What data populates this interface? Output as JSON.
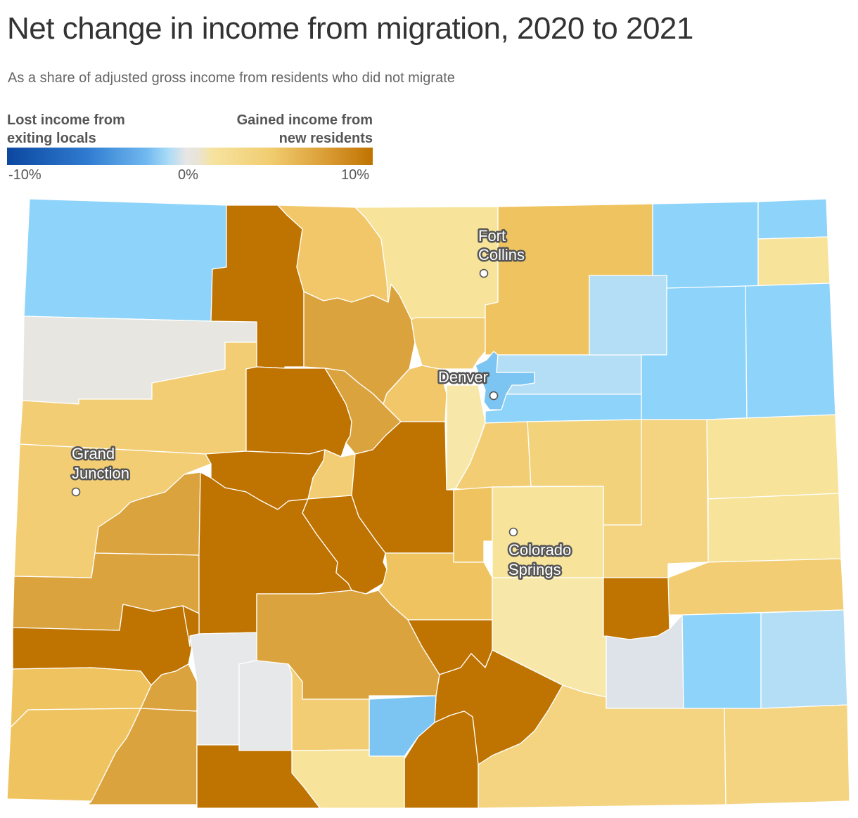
{
  "title": "Net change in income from migration, 2020 to 2021",
  "subtitle": "As a share of adjusted gross income from residents who did not migrate",
  "legend": {
    "left_label": [
      "Lost income from",
      "exiting locals"
    ],
    "right_label": [
      "Gained income from",
      "new residents"
    ],
    "ticks": [
      "-10%",
      "0%",
      "10%"
    ]
  },
  "colors": {
    "dark_blue": "#0c47a0",
    "blue": "#7cc4f2",
    "light_blue": "#8dd3fa",
    "pale_blue": "#b4def5",
    "gray": "#e8e8e6",
    "pale_yellow": "#f7e7a8",
    "light_gold": "#f4d480",
    "gold": "#edc25e",
    "dark_gold": "#dba33e",
    "brown": "#bf7300"
  },
  "cities": [
    {
      "name": "Fort Collins",
      "lines": [
        "Fort",
        "Collins"
      ]
    },
    {
      "name": "Denver",
      "lines": [
        "Denver"
      ]
    },
    {
      "name": "Grand Junction",
      "lines": [
        "Grand",
        "Junction"
      ]
    },
    {
      "name": "Colorado Springs",
      "lines": [
        "Colorado",
        "Springs"
      ]
    }
  ]
}
